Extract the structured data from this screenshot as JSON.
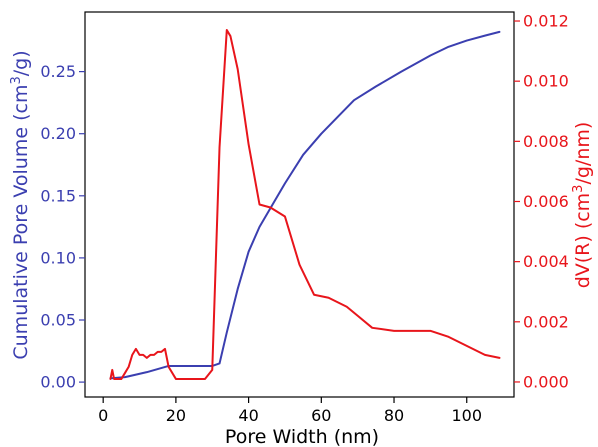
{
  "chart_data": {
    "type": "line",
    "xlabel": "Pore Width (nm)",
    "xlim": [
      -5,
      113
    ],
    "x_ticks": [
      {
        "value": 0,
        "label": "0"
      },
      {
        "value": 20,
        "label": "20"
      },
      {
        "value": 40,
        "label": "40"
      },
      {
        "value": 60,
        "label": "60"
      },
      {
        "value": 80,
        "label": "80"
      },
      {
        "value": 100,
        "label": "100"
      }
    ],
    "left_axis": {
      "label_parts": [
        "Cumulative Pore Volume (cm",
        "3",
        "/g)"
      ],
      "color": "#3b3fb0",
      "ylim": [
        -0.012,
        0.298
      ],
      "ticks": [
        {
          "value": 0.0,
          "label": "0.00"
        },
        {
          "value": 0.05,
          "label": "0.05"
        },
        {
          "value": 0.1,
          "label": "0.10"
        },
        {
          "value": 0.15,
          "label": "0.15"
        },
        {
          "value": 0.2,
          "label": "0.20"
        },
        {
          "value": 0.25,
          "label": "0.25"
        }
      ]
    },
    "right_axis": {
      "label_parts": [
        "dV(R) (cm",
        "3",
        "/g/nm)"
      ],
      "color": "#e8151b",
      "ylim": [
        -0.0005,
        0.0123
      ],
      "ticks": [
        {
          "value": 0.0,
          "label": "0.000"
        },
        {
          "value": 0.002,
          "label": "0.002"
        },
        {
          "value": 0.004,
          "label": "0.004"
        },
        {
          "value": 0.006,
          "label": "0.006"
        },
        {
          "value": 0.008,
          "label": "0.008"
        },
        {
          "value": 0.01,
          "label": "0.010"
        },
        {
          "value": 0.012,
          "label": "0.012"
        }
      ]
    },
    "series": [
      {
        "axis": "left",
        "color": "#3b3fb0",
        "x": [
          2,
          6,
          12,
          18,
          25,
          30,
          32,
          34,
          37,
          40,
          43,
          47,
          50,
          55,
          60,
          65,
          69,
          75,
          82,
          90,
          95,
          100,
          105,
          109
        ],
        "y": [
          0.003,
          0.004,
          0.008,
          0.013,
          0.013,
          0.013,
          0.015,
          0.04,
          0.075,
          0.105,
          0.125,
          0.145,
          0.16,
          0.183,
          0.2,
          0.215,
          0.227,
          0.238,
          0.25,
          0.263,
          0.27,
          0.275,
          0.279,
          0.282
        ]
      },
      {
        "axis": "right",
        "color": "#e8151b",
        "x": [
          2,
          2.5,
          3,
          3.5,
          4,
          5,
          6,
          7,
          8,
          9,
          10,
          11,
          12,
          13,
          14,
          15,
          16,
          17,
          18,
          20,
          22,
          25,
          28,
          30,
          32,
          34,
          35,
          37,
          40,
          43,
          46,
          50,
          54,
          58,
          62,
          67,
          70,
          74,
          80,
          86,
          90,
          95,
          100,
          105,
          109
        ],
        "y": [
          0.0001,
          0.0004,
          0.0001,
          0.0001,
          0.0001,
          0.0001,
          0.0003,
          0.0005,
          0.0009,
          0.0011,
          0.0009,
          0.0009,
          0.0008,
          0.0009,
          0.0009,
          0.001,
          0.001,
          0.0011,
          0.0005,
          0.0001,
          0.0001,
          0.0001,
          0.0001,
          0.0004,
          0.0078,
          0.0117,
          0.0115,
          0.0104,
          0.0079,
          0.0059,
          0.0058,
          0.0055,
          0.0039,
          0.0029,
          0.0028,
          0.0025,
          0.0022,
          0.0018,
          0.0017,
          0.0017,
          0.0017,
          0.0015,
          0.0012,
          0.0009,
          0.0008
        ]
      }
    ]
  }
}
